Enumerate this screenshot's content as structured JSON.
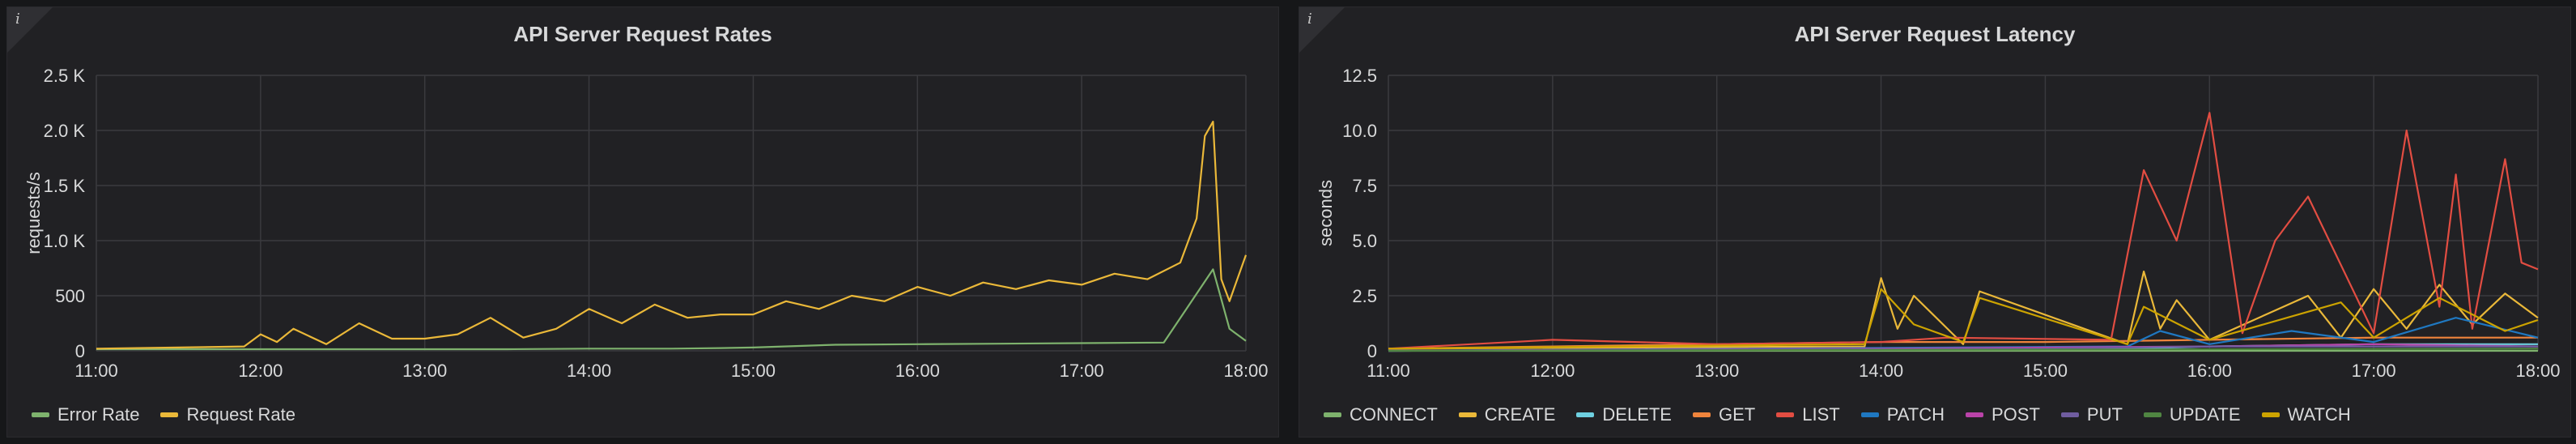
{
  "panels": [
    {
      "title": "API Server Request Rates",
      "info_icon": "i",
      "chart_data": {
        "type": "line",
        "title": "API Server Request Rates",
        "ylabel": "requests/s",
        "y_ticks": [
          "0",
          "500",
          "1.0 K",
          "1.5 K",
          "2.0 K",
          "2.5 K"
        ],
        "ylim": [
          0,
          2500
        ],
        "x_ticks": [
          "11:00",
          "12:00",
          "13:00",
          "14:00",
          "15:00",
          "16:00",
          "17:00",
          "18:00"
        ],
        "xlim": [
          0,
          7
        ],
        "grid": true,
        "legend_position": "bottom-left",
        "series": [
          {
            "name": "Error Rate",
            "color": "#7eb26d",
            "x": [
              0,
              1,
              2,
              2.5,
              3,
              3.5,
              3.8,
              4,
              4.5,
              5,
              5.5,
              6,
              6.5,
              6.8,
              6.9,
              7
            ],
            "y": [
              15,
              15,
              15,
              15,
              20,
              20,
              25,
              30,
              55,
              60,
              65,
              70,
              75,
              740,
              200,
              90
            ]
          },
          {
            "name": "Request Rate",
            "color": "#eab839",
            "x": [
              0,
              0.5,
              0.9,
              1.0,
              1.1,
              1.2,
              1.4,
              1.6,
              1.8,
              2.0,
              2.2,
              2.4,
              2.6,
              2.8,
              3.0,
              3.2,
              3.4,
              3.6,
              3.8,
              4.0,
              4.2,
              4.4,
              4.6,
              4.8,
              5.0,
              5.2,
              5.4,
              5.6,
              5.8,
              6.0,
              6.2,
              6.4,
              6.6,
              6.7,
              6.75,
              6.8,
              6.85,
              6.9,
              7.0
            ],
            "y": [
              20,
              30,
              40,
              150,
              80,
              200,
              60,
              250,
              110,
              110,
              150,
              300,
              120,
              200,
              380,
              250,
              420,
              300,
              330,
              330,
              450,
              380,
              500,
              450,
              580,
              500,
              620,
              560,
              640,
              600,
              700,
              650,
              800,
              1200,
              1950,
              2080,
              650,
              450,
              870
            ]
          }
        ]
      },
      "legend": [
        {
          "label": "Error Rate",
          "color": "#7eb26d"
        },
        {
          "label": "Request Rate",
          "color": "#eab839"
        }
      ]
    },
    {
      "title": "API Server Request Latency",
      "info_icon": "i",
      "chart_data": {
        "type": "line",
        "title": "API Server Request Latency",
        "ylabel": "seconds",
        "y_ticks": [
          "0",
          "2.5",
          "5.0",
          "7.5",
          "10.0",
          "12.5"
        ],
        "ylim": [
          0,
          12.5
        ],
        "x_ticks": [
          "11:00",
          "12:00",
          "13:00",
          "14:00",
          "15:00",
          "16:00",
          "17:00",
          "18:00"
        ],
        "xlim": [
          0,
          7
        ],
        "grid": true,
        "legend_position": "bottom-left",
        "series": [
          {
            "name": "CONNECT",
            "color": "#7eb26d",
            "x": [
              0,
              7
            ],
            "y": [
              0,
              0
            ]
          },
          {
            "name": "CREATE",
            "color": "#eab839",
            "x": [
              0,
              2.9,
              3.0,
              3.1,
              3.2,
              3.5,
              3.6,
              4.5,
              4.6,
              4.7,
              4.8,
              5.0,
              5.6,
              5.8,
              6.0,
              6.2,
              6.4,
              6.6,
              6.8,
              7.0
            ],
            "y": [
              0.1,
              0.2,
              3.3,
              1.0,
              2.5,
              0.3,
              2.7,
              0.3,
              3.6,
              1.0,
              2.3,
              0.5,
              2.5,
              0.6,
              2.8,
              1.0,
              3.0,
              1.2,
              2.6,
              1.5
            ]
          },
          {
            "name": "DELETE",
            "color": "#6ed0e0",
            "x": [
              0,
              4.5,
              5.0,
              6.0,
              7.0
            ],
            "y": [
              0,
              0.1,
              0.2,
              0.3,
              0.3
            ]
          },
          {
            "name": "GET",
            "color": "#ef843c",
            "x": [
              0,
              1,
              2,
              3,
              4,
              5,
              6,
              7
            ],
            "y": [
              0.1,
              0.2,
              0.3,
              0.4,
              0.4,
              0.5,
              0.6,
              0.6
            ]
          },
          {
            "name": "LIST",
            "color": "#e24d42",
            "x": [
              0,
              1.0,
              2.0,
              3.0,
              3.4,
              4.4,
              4.6,
              4.8,
              5.0,
              5.2,
              5.4,
              5.6,
              6.0,
              6.2,
              6.4,
              6.5,
              6.6,
              6.8,
              6.9,
              7.0
            ],
            "y": [
              0.1,
              0.5,
              0.3,
              0.4,
              0.6,
              0.5,
              8.2,
              5.0,
              10.8,
              0.8,
              5.0,
              7.0,
              0.8,
              10.0,
              2.0,
              8.0,
              1.0,
              8.7,
              4.0,
              3.7
            ]
          },
          {
            "name": "PATCH",
            "color": "#1f78c1",
            "x": [
              0,
              4.5,
              4.7,
              5.0,
              5.5,
              6.0,
              6.5,
              7.0
            ],
            "y": [
              0,
              0.2,
              0.9,
              0.3,
              0.9,
              0.4,
              1.5,
              0.6
            ]
          },
          {
            "name": "POST",
            "color": "#ba43a9",
            "x": [
              0,
              3,
              5,
              6,
              7
            ],
            "y": [
              0,
              0.1,
              0.2,
              0.3,
              0.2
            ]
          },
          {
            "name": "PUT",
            "color": "#705da0",
            "x": [
              0,
              4,
              5,
              6,
              7
            ],
            "y": [
              0,
              0.1,
              0.2,
              0.2,
              0.2
            ]
          },
          {
            "name": "UPDATE",
            "color": "#508642",
            "x": [
              0,
              7
            ],
            "y": [
              0,
              0.1
            ]
          },
          {
            "name": "WATCH",
            "color": "#cca300",
            "x": [
              0,
              2.9,
              3.0,
              3.2,
              3.5,
              3.6,
              4.5,
              4.6,
              5.0,
              5.8,
              6.0,
              6.4,
              6.8,
              7.0
            ],
            "y": [
              0.1,
              0.3,
              2.8,
              1.2,
              0.4,
              2.4,
              0.3,
              2.0,
              0.5,
              2.2,
              0.6,
              2.4,
              0.9,
              1.4
            ]
          }
        ]
      },
      "legend": [
        {
          "label": "CONNECT",
          "color": "#7eb26d"
        },
        {
          "label": "CREATE",
          "color": "#eab839"
        },
        {
          "label": "DELETE",
          "color": "#6ed0e0"
        },
        {
          "label": "GET",
          "color": "#ef843c"
        },
        {
          "label": "LIST",
          "color": "#e24d42"
        },
        {
          "label": "PATCH",
          "color": "#1f78c1"
        },
        {
          "label": "POST",
          "color": "#ba43a9"
        },
        {
          "label": "PUT",
          "color": "#705da0"
        },
        {
          "label": "UPDATE",
          "color": "#508642"
        },
        {
          "label": "WATCH",
          "color": "#cca300"
        }
      ]
    }
  ]
}
